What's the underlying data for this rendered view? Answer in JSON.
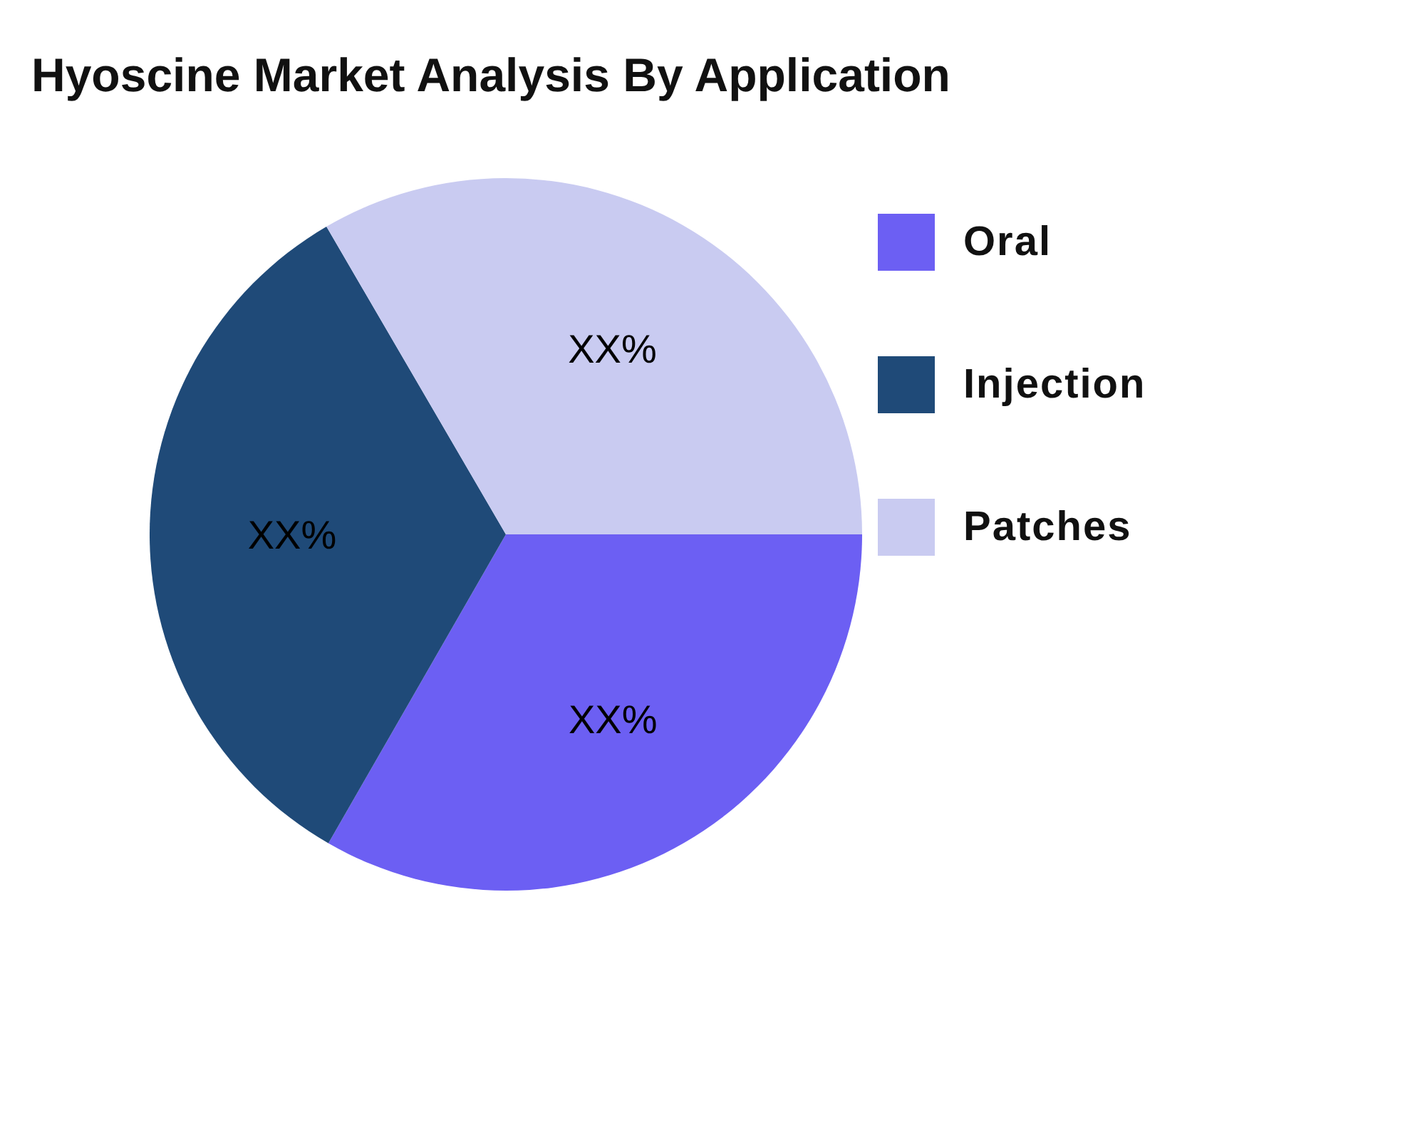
{
  "chart_data": {
    "type": "pie",
    "title": "Hyoscine Market Analysis By Application",
    "categories": [
      "Oral",
      "Injection",
      "Patches"
    ],
    "values": [
      33.3,
      33.3,
      33.4
    ],
    "colors": [
      "#6c5ff3",
      "#1f4a78",
      "#c9cbf1"
    ],
    "value_labels": [
      "XX%",
      "XX%",
      "XX%"
    ],
    "legend": "right"
  }
}
